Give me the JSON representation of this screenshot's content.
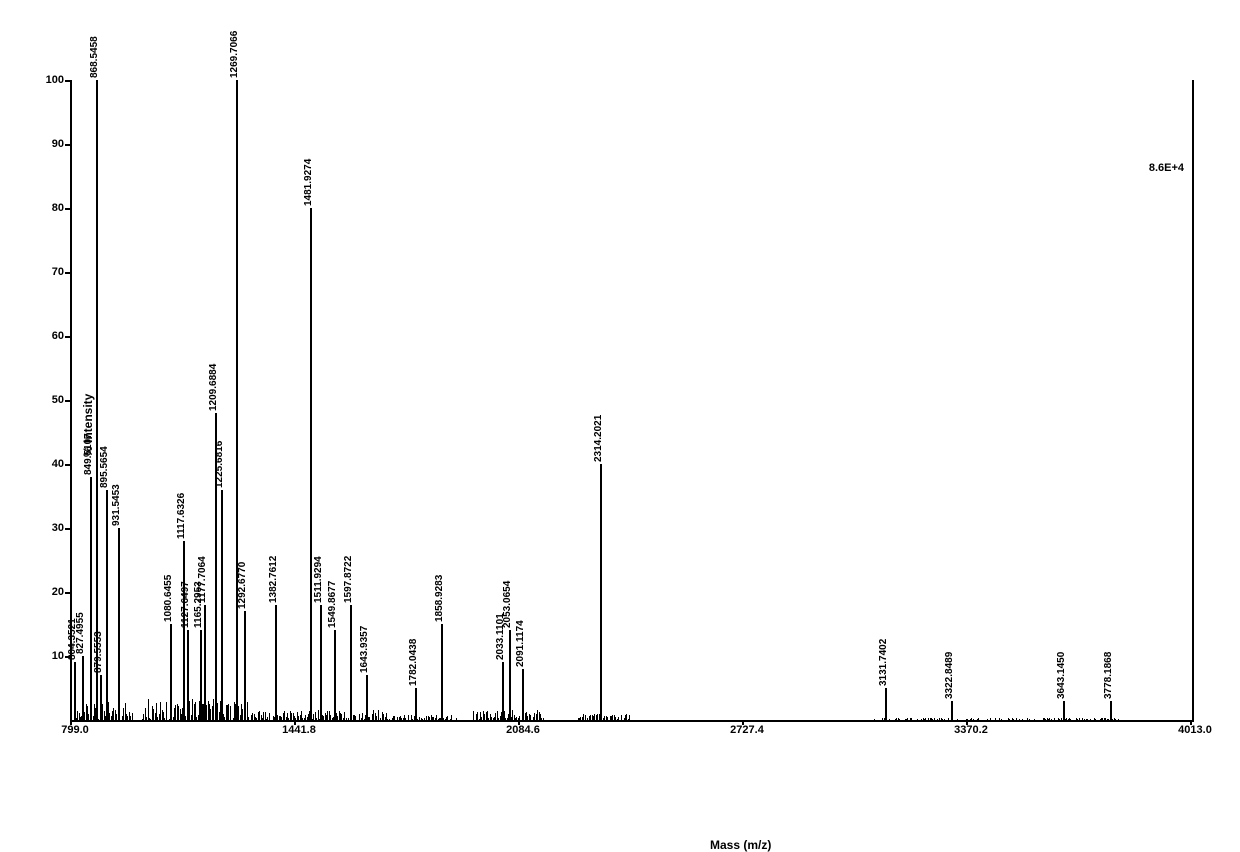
{
  "chart": {
    "type": "mass-spectrum",
    "xlabel": "Mass (m/z)",
    "ylabel": "% Intensity",
    "intensity_annotation": "8.6E+4",
    "x_axis": {
      "min": 799.0,
      "max": 4013.0,
      "ticks": [
        799.0,
        1441.8,
        2084.6,
        2727.4,
        3370.2,
        4013.0
      ]
    },
    "y_axis": {
      "min": 0,
      "max": 100,
      "ticks": [
        10,
        20,
        30,
        40,
        50,
        60,
        70,
        80,
        90,
        100
      ]
    },
    "peaks": [
      {
        "mz": 804.3521,
        "intensity": 9,
        "label": "804.3521"
      },
      {
        "mz": 827.4955,
        "intensity": 10,
        "label": "827.4955"
      },
      {
        "mz": 849.5107,
        "intensity": 38,
        "label": "849.5107"
      },
      {
        "mz": 868.5458,
        "intensity": 100,
        "label": "868.5458"
      },
      {
        "mz": 879.5553,
        "intensity": 7,
        "label": "879.5553"
      },
      {
        "mz": 895.5654,
        "intensity": 36,
        "label": "895.5654"
      },
      {
        "mz": 931.5453,
        "intensity": 30,
        "label": "931.5453"
      },
      {
        "mz": 1080.6455,
        "intensity": 15,
        "label": "1080.6455"
      },
      {
        "mz": 1117.6326,
        "intensity": 28,
        "label": "1117.6326"
      },
      {
        "mz": 1127.6497,
        "intensity": 14,
        "label": "1127.6497"
      },
      {
        "mz": 1165.2953,
        "intensity": 14,
        "label": "1165.2953"
      },
      {
        "mz": 1177.7064,
        "intensity": 18,
        "label": "1177.7064"
      },
      {
        "mz": 1209.6884,
        "intensity": 48,
        "label": "1209.6884"
      },
      {
        "mz": 1225.6816,
        "intensity": 36,
        "label": "1225.6816"
      },
      {
        "mz": 1269.7066,
        "intensity": 100,
        "label": "1269.7066"
      },
      {
        "mz": 1292.677,
        "intensity": 17,
        "label": "1292.6770"
      },
      {
        "mz": 1382.7612,
        "intensity": 18,
        "label": "1382.7612"
      },
      {
        "mz": 1481.9274,
        "intensity": 80,
        "label": "1481.9274"
      },
      {
        "mz": 1511.9294,
        "intensity": 18,
        "label": "1511.9294"
      },
      {
        "mz": 1549.8677,
        "intensity": 14,
        "label": "1549.8677"
      },
      {
        "mz": 1597.8722,
        "intensity": 18,
        "label": "1597.8722"
      },
      {
        "mz": 1643.9357,
        "intensity": 7,
        "label": "1643.9357"
      },
      {
        "mz": 1782.0438,
        "intensity": 5,
        "label": "1782.0438"
      },
      {
        "mz": 1858.9283,
        "intensity": 15,
        "label": "1858.9283"
      },
      {
        "mz": 2033.1101,
        "intensity": 9,
        "label": "2033.1101"
      },
      {
        "mz": 2053.0654,
        "intensity": 14,
        "label": "2053.0654"
      },
      {
        "mz": 2091.1174,
        "intensity": 8,
        "label": "2091.1174"
      },
      {
        "mz": 2314.2021,
        "intensity": 40,
        "label": "2314.2021"
      },
      {
        "mz": 3131.7402,
        "intensity": 5,
        "label": "3131.7402"
      },
      {
        "mz": 3322.8489,
        "intensity": 3,
        "label": "3322.8489"
      },
      {
        "mz": 3643.145,
        "intensity": 3,
        "label": "3643.1450"
      },
      {
        "mz": 3778.1868,
        "intensity": 3,
        "label": "3778.1868"
      }
    ],
    "colors": {
      "background": "#ffffff",
      "axis": "#000000",
      "peak": "#000000",
      "text": "#000000"
    },
    "fonts": {
      "axis_label_size": 12,
      "tick_label_size": 11,
      "peak_label_size": 10
    }
  }
}
